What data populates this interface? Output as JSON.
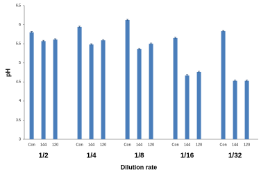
{
  "chart_data": {
    "type": "grouped-bar",
    "y_label": "pH",
    "x_label": "Dilution rate",
    "groups": [
      {
        "name": "1/2",
        "categories": [
          "Con",
          "144",
          "120"
        ],
        "values": [
          5.8,
          5.57,
          5.61
        ],
        "errors": [
          0.02,
          0.02,
          0.02
        ]
      },
      {
        "name": "1/4",
        "categories": [
          "Con",
          "144",
          "120"
        ],
        "values": [
          5.94,
          5.48,
          5.59
        ],
        "errors": [
          0.02,
          0.02,
          0.02
        ]
      },
      {
        "name": "1/8",
        "categories": [
          "Con",
          "144",
          "120"
        ],
        "values": [
          6.12,
          5.36,
          5.5
        ],
        "errors": [
          0.02,
          0.02,
          0.02
        ]
      },
      {
        "name": "1/16",
        "categories": [
          "Con",
          "144",
          "120"
        ],
        "values": [
          5.65,
          4.67,
          4.76
        ],
        "errors": [
          0.02,
          0.02,
          0.02
        ]
      },
      {
        "name": "1/32",
        "categories": [
          "Con",
          "144",
          "120"
        ],
        "values": [
          5.83,
          4.53,
          4.53
        ],
        "errors": [
          0.02,
          0.02,
          0.02
        ]
      }
    ],
    "color": "#4a7ebb",
    "ylim": [
      3,
      6.5
    ],
    "yticks": [
      3,
      3.5,
      4,
      4.5,
      5,
      5.5,
      6,
      6.5
    ],
    "grid": false
  }
}
